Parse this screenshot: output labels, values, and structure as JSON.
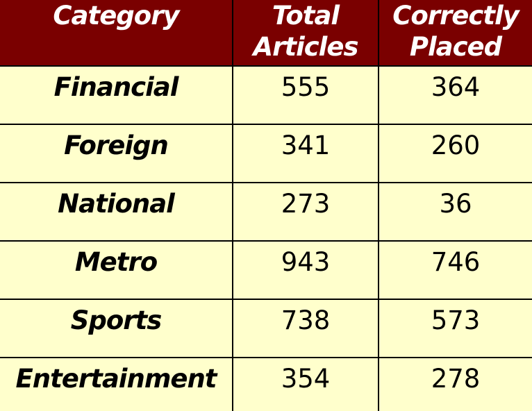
{
  "chart_data": {
    "type": "table",
    "columns": [
      "Category",
      "Total\nArticles",
      "Correctly\nPlaced"
    ],
    "rows": [
      {
        "category": "Financial",
        "total": "555",
        "correct": "364"
      },
      {
        "category": "Foreign",
        "total": "341",
        "correct": "260"
      },
      {
        "category": "National",
        "total": "273",
        "correct": "36"
      },
      {
        "category": "Metro",
        "total": "943",
        "correct": "746"
      },
      {
        "category": "Sports",
        "total": "738",
        "correct": "573"
      },
      {
        "category": "Entertainment",
        "total": "354",
        "correct": "278"
      }
    ]
  },
  "colors": {
    "header_bg": "#7a0000",
    "header_text": "#ffffff",
    "body_bg": "#ffffcc",
    "grid": "#000000",
    "body_text": "#000000"
  }
}
